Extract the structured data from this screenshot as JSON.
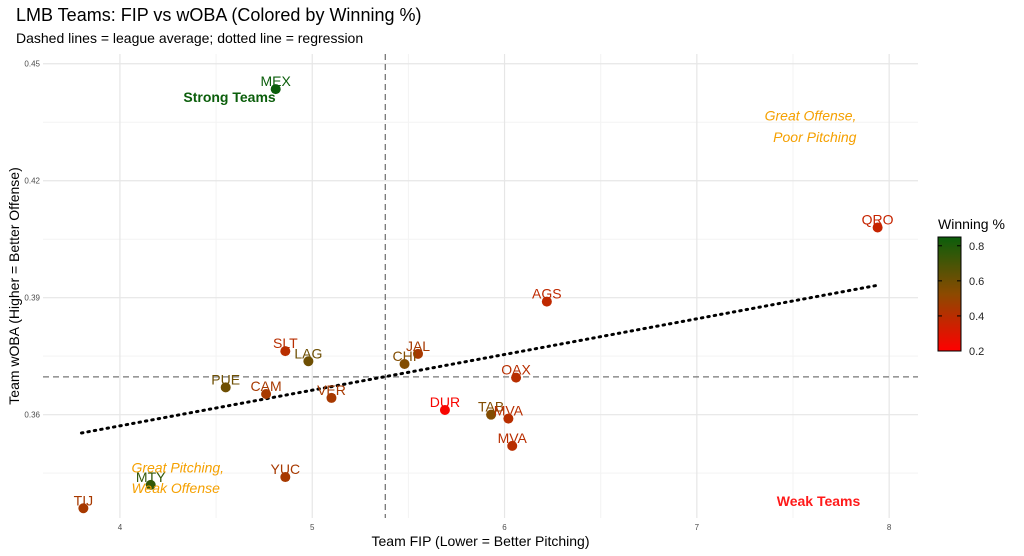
{
  "chart_data": {
    "type": "scatter",
    "title": "LMB Teams: FIP vs wOBA (Colored by Winning %)",
    "subtitle": "Dashed lines = league average; dotted line = regression",
    "xlabel": "Team FIP (Lower = Better Pitching)",
    "ylabel": "Team wOBA (Higher = Better Offense)",
    "xlim": [
      3.6,
      8.15
    ],
    "ylim": [
      0.3335,
      0.4525
    ],
    "x_ticks": [
      4,
      5,
      6,
      7,
      8
    ],
    "y_ticks": [
      0.36,
      0.39,
      0.42,
      0.45
    ],
    "x_tick_labels": [
      "4",
      "5",
      "6",
      "7",
      "8"
    ],
    "y_tick_labels": [
      "0.36",
      "0.39",
      "0.42",
      "0.45"
    ],
    "grid": true,
    "reference_lines": {
      "x_mean": 5.38,
      "y_mean": 0.3697
    },
    "regression": {
      "x": [
        3.8,
        7.93
      ],
      "y": [
        0.3553,
        0.3931
      ]
    },
    "points": [
      {
        "team": "MEX",
        "x": 4.81,
        "y": 0.4435,
        "win_pct": 0.85
      },
      {
        "team": "QRO",
        "x": 7.94,
        "y": 0.408,
        "win_pct": 0.36
      },
      {
        "team": "AGS",
        "x": 6.22,
        "y": 0.389,
        "win_pct": 0.38
      },
      {
        "team": "SLT",
        "x": 4.86,
        "y": 0.3763,
        "win_pct": 0.4
      },
      {
        "team": "LAG",
        "x": 4.98,
        "y": 0.3737,
        "win_pct": 0.6
      },
      {
        "team": "JAL",
        "x": 5.55,
        "y": 0.3756,
        "win_pct": 0.45
      },
      {
        "team": "CHI",
        "x": 5.48,
        "y": 0.373,
        "win_pct": 0.55
      },
      {
        "team": "OAX",
        "x": 6.06,
        "y": 0.3695,
        "win_pct": 0.4
      },
      {
        "team": "PUE",
        "x": 4.55,
        "y": 0.367,
        "win_pct": 0.6
      },
      {
        "team": "CAM",
        "x": 4.76,
        "y": 0.3653,
        "win_pct": 0.45
      },
      {
        "team": "VER",
        "x": 5.1,
        "y": 0.3643,
        "win_pct": 0.45
      },
      {
        "team": "DUR",
        "x": 5.69,
        "y": 0.3612,
        "win_pct": 0.22
      },
      {
        "team": "TAB",
        "x": 5.93,
        "y": 0.36,
        "win_pct": 0.55
      },
      {
        "team": "MVA",
        "x": 6.02,
        "y": 0.359,
        "win_pct": 0.4
      },
      {
        "team": "MVA",
        "x": 6.04,
        "y": 0.352,
        "win_pct": 0.4
      },
      {
        "team": "YUC",
        "x": 4.86,
        "y": 0.344,
        "win_pct": 0.45
      },
      {
        "team": "MTY",
        "x": 4.16,
        "y": 0.342,
        "win_pct": 0.75
      },
      {
        "team": "TIJ",
        "x": 3.81,
        "y": 0.336,
        "win_pct": 0.45
      }
    ],
    "annotations": [
      {
        "text": "Strong Teams",
        "color": "#0b5e0b",
        "bold": true,
        "italic": false,
        "x": 4.33,
        "y": 0.4415
      },
      {
        "text": "Great Offense,",
        "color": "#f5a000",
        "bold": false,
        "italic": true,
        "x": 7.83,
        "y": 0.4367
      },
      {
        "text": "Poor Pitching",
        "color": "#f5a000",
        "bold": false,
        "italic": true,
        "x": 7.83,
        "y": 0.4312
      },
      {
        "text": "Great Pitching,",
        "color": "#f5a000",
        "bold": false,
        "italic": true,
        "x": 4.06,
        "y": 0.3465
      },
      {
        "text": "Weak Offense",
        "color": "#f5a000",
        "bold": false,
        "italic": true,
        "x": 4.06,
        "y": 0.3412
      },
      {
        "text": "Weak Teams",
        "color": "#ff1a1a",
        "bold": true,
        "italic": false,
        "x": 7.85,
        "y": 0.3378
      }
    ],
    "legend": {
      "title": "Winning %",
      "placement": "right",
      "range": [
        0.2,
        0.85
      ],
      "ticks": [
        0.2,
        0.4,
        0.6,
        0.8
      ],
      "tick_labels": [
        "0.2",
        "0.4",
        "0.6",
        "0.8"
      ],
      "colors": [
        "#ff0000",
        "#8c4a00",
        "#0b5e0b"
      ]
    }
  }
}
